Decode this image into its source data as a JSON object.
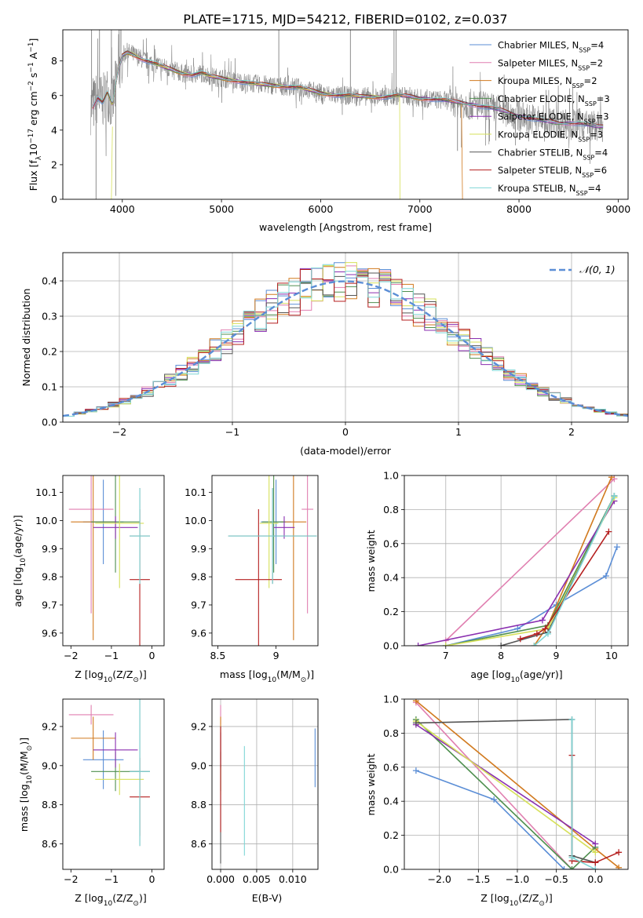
{
  "figure_title": "PLATE=1715, MJD=54212, FIBERID=0102, z=0.037",
  "models": [
    {
      "name": "Chabrier MILES",
      "nssp": "4",
      "color": "#5b8ed6"
    },
    {
      "name": "Salpeter MILES",
      "nssp": "2",
      "color": "#e07fb0"
    },
    {
      "name": "Kroupa MILES",
      "nssp": "2",
      "color": "#d17a1f"
    },
    {
      "name": "Chabrier ELODIE",
      "nssp": "3",
      "color": "#4f8f4f"
    },
    {
      "name": "Salpeter ELODIE",
      "nssp": "3",
      "color": "#8a2fb0"
    },
    {
      "name": "Kroupa ELODIE",
      "nssp": "3",
      "color": "#d6e05a"
    },
    {
      "name": "Chabrier STELIB",
      "nssp": "4",
      "color": "#555555"
    },
    {
      "name": "Salpeter STELIB",
      "nssp": "6",
      "color": "#b51f1f"
    },
    {
      "name": "Kroupa STELIB",
      "nssp": "4",
      "color": "#7fd6d6"
    }
  ],
  "chart_data": [
    {
      "id": "spectrum",
      "type": "line",
      "xlabel": "wavelength [Angstrom, rest frame]",
      "ylabel_parts": [
        "Flux [f",
        "λ",
        "10",
        "−17",
        " erg cm",
        "−2",
        " s",
        "−1",
        " A",
        "−1",
        "]"
      ],
      "xlim": [
        3400,
        9100
      ],
      "ylim": [
        0,
        9.8
      ],
      "xticks": [
        4000,
        5000,
        6000,
        7000,
        8000,
        9000
      ],
      "yticks": [
        0,
        2,
        4,
        6,
        8
      ],
      "legend_position": "top-right",
      "legend_sub": "SSP",
      "data_color": "#808080",
      "model_x": [
        3700,
        3750,
        3800,
        3850,
        3900,
        3950,
        4000,
        4050,
        4100,
        4200,
        4300,
        4400,
        4500,
        4600,
        4700,
        4800,
        4900,
        5000,
        5100,
        5200,
        5300,
        5400,
        5500,
        5600,
        5700,
        5800,
        5900,
        6000,
        6100,
        6200,
        6300,
        6400,
        6500,
        6600,
        6700,
        6800,
        6900,
        7000,
        7100,
        7200,
        7300,
        7400,
        7500,
        7600,
        7700,
        7800,
        7900,
        8000,
        8100,
        8200,
        8300,
        8400,
        8500,
        8600,
        8700,
        8800,
        8850
      ],
      "model_y": [
        5.3,
        5.9,
        5.6,
        6.2,
        5.4,
        7.2,
        8.3,
        8.5,
        8.4,
        8.1,
        7.9,
        7.7,
        7.5,
        7.3,
        7.2,
        7.3,
        7.1,
        7.0,
        6.9,
        6.8,
        6.7,
        6.65,
        6.6,
        6.55,
        6.5,
        6.45,
        6.3,
        6.15,
        6.05,
        6.0,
        6.0,
        5.95,
        5.95,
        5.9,
        5.95,
        6.0,
        5.95,
        5.85,
        5.8,
        5.75,
        5.7,
        5.6,
        5.5,
        5.4,
        5.3,
        5.2,
        5.0,
        4.8,
        4.7,
        4.6,
        4.5,
        4.4,
        4.4,
        4.4,
        4.3,
        4.2,
        4.2
      ]
    },
    {
      "id": "residuals",
      "type": "histogram",
      "xlabel": "(data-model)/error",
      "ylabel": "Normed distribution",
      "xlim": [
        -2.5,
        2.5
      ],
      "ylim": [
        0,
        0.48
      ],
      "xticks": [
        -2,
        -1,
        0,
        1,
        2
      ],
      "yticks": [
        0.0,
        0.1,
        0.2,
        0.3,
        0.4
      ],
      "bin_width": 0.1,
      "normal_label": "𝒩(0, 1)",
      "normal_color": "#5b8ed6",
      "legend_position": "top-right",
      "grid": true
    },
    {
      "id": "age-vs-Z",
      "type": "errorbar",
      "xlabel_parts": [
        "Z [log",
        "10",
        "(Z/Z",
        "⊙",
        ")]"
      ],
      "ylabel_parts": [
        "age  [log",
        "10",
        "(age/yr)]"
      ],
      "xlim": [
        -2.2,
        0.3
      ],
      "ylim": [
        9.555,
        10.16
      ],
      "xticks": [
        -2,
        -1,
        0
      ],
      "yticks": [
        9.6,
        9.7,
        9.8,
        9.9,
        10.0,
        10.1
      ],
      "points": [
        {
          "model": 0,
          "x": -1.2,
          "xerr": 0.5,
          "y": 9.995,
          "yerr": 0.15
        },
        {
          "model": 1,
          "x": -1.5,
          "xerr": 0.55,
          "y": 10.04,
          "yerr": 0.37
        },
        {
          "model": 2,
          "x": -1.45,
          "xerr": 0.55,
          "y": 9.995,
          "yerr": 0.42
        },
        {
          "model": 3,
          "x": -0.9,
          "xerr": 0.6,
          "y": 9.995,
          "yerr": 0.18
        },
        {
          "model": 4,
          "x": -0.9,
          "xerr": 0.55,
          "y": 9.975,
          "yerr": 0.04
        },
        {
          "model": 5,
          "x": -0.8,
          "xerr": 0.6,
          "y": 9.99,
          "yerr": 0.23
        },
        {
          "model": 6,
          "x": -0.3,
          "xerr": 0.25,
          "y": 9.945,
          "yerr": 0.17
        },
        {
          "model": 7,
          "x": -0.3,
          "xerr": 0.25,
          "y": 9.79,
          "yerr": 0.25
        },
        {
          "model": 8,
          "x": -0.3,
          "xerr": 0.25,
          "y": 9.945,
          "yerr": 0.17
        }
      ]
    },
    {
      "id": "age-vs-mass",
      "type": "errorbar",
      "xlabel_parts": [
        "mass [log",
        "10",
        "(M/M",
        "⊙",
        ")]"
      ],
      "xlim": [
        8.45,
        9.36
      ],
      "ylim": [
        9.555,
        10.16
      ],
      "xticks": [
        8.5,
        9.0
      ],
      "yticks": [
        9.6,
        9.7,
        9.8,
        9.9,
        10.0,
        10.1
      ],
      "points": [
        {
          "model": 0,
          "x": 9.0,
          "xerr": 0.13,
          "y": 9.995,
          "yerr": 0.15
        },
        {
          "model": 1,
          "x": 9.27,
          "xerr": 0.05,
          "y": 10.04,
          "yerr": 0.37
        },
        {
          "model": 2,
          "x": 9.15,
          "xerr": 0.11,
          "y": 9.995,
          "yerr": 0.42
        },
        {
          "model": 3,
          "x": 8.98,
          "xerr": 0.1,
          "y": 9.995,
          "yerr": 0.18
        },
        {
          "model": 4,
          "x": 9.07,
          "xerr": 0.09,
          "y": 9.975,
          "yerr": 0.04
        },
        {
          "model": 5,
          "x": 8.94,
          "xerr": 0.08,
          "y": 9.99,
          "yerr": 0.23
        },
        {
          "model": 6,
          "x": 8.97,
          "xerr": 0.38,
          "y": 9.945,
          "yerr": 0.17
        },
        {
          "model": 7,
          "x": 8.85,
          "xerr": 0.2,
          "y": 9.79,
          "yerr": 0.25
        },
        {
          "model": 8,
          "x": 8.97,
          "xerr": 0.38,
          "y": 9.945,
          "yerr": 0.17
        }
      ]
    },
    {
      "id": "weight-vs-age",
      "type": "line",
      "xlabel_parts": [
        "age  [log",
        "10",
        "(age/yr)]"
      ],
      "ylabel": "mass weight",
      "xlim": [
        6.25,
        10.3
      ],
      "ylim": [
        0,
        1
      ],
      "xticks": [
        7,
        8,
        9,
        10
      ],
      "yticks": [
        0.0,
        0.2,
        0.4,
        0.6,
        0.8,
        1.0
      ],
      "grid": true,
      "series": [
        {
          "model": 0,
          "x": [
            7.0,
            8.3,
            9.0,
            9.9,
            10.1
          ],
          "y": [
            0.0,
            0.1,
            0.24,
            0.41,
            0.58
          ]
        },
        {
          "model": 1,
          "x": [
            7.0,
            10.05
          ],
          "y": [
            0.03,
            0.98
          ]
        },
        {
          "model": 2,
          "x": [
            8.6,
            8.85,
            10.0
          ],
          "y": [
            0.0,
            0.12,
            0.99
          ]
        },
        {
          "model": 3,
          "x": [
            7.0,
            8.85,
            10.05
          ],
          "y": [
            0.0,
            0.12,
            0.88
          ]
        },
        {
          "model": 4,
          "x": [
            6.5,
            8.75,
            10.05
          ],
          "y": [
            0.0,
            0.15,
            0.85
          ]
        },
        {
          "model": 5,
          "x": [
            7.0,
            8.85,
            10.05
          ],
          "y": [
            0.0,
            0.1,
            0.87
          ]
        },
        {
          "model": 6,
          "x": [
            8.0,
            8.85,
            10.05
          ],
          "y": [
            0.0,
            0.08,
            0.88
          ]
        },
        {
          "model": 7,
          "x": [
            8.35,
            8.65,
            8.8,
            9.95
          ],
          "y": [
            0.04,
            0.07,
            0.1,
            0.67
          ]
        },
        {
          "model": 8,
          "x": [
            8.6,
            8.85,
            10.05
          ],
          "y": [
            0.0,
            0.07,
            0.88
          ]
        }
      ]
    },
    {
      "id": "mass-vs-Z",
      "type": "errorbar",
      "xlabel_parts": [
        "Z [log",
        "10",
        "(Z/Z",
        "⊙",
        ")]"
      ],
      "ylabel_parts": [
        "mass [log",
        "10",
        "(M/M",
        "⊙",
        ")]"
      ],
      "xlim": [
        -2.2,
        0.3
      ],
      "ylim": [
        8.47,
        9.34
      ],
      "xticks": [
        -2,
        -1,
        0
      ],
      "yticks": [
        8.6,
        8.8,
        9.0,
        9.2
      ],
      "points": [
        {
          "model": 0,
          "x": -1.2,
          "xerr": 0.5,
          "y": 9.03,
          "yerr": 0.15
        },
        {
          "model": 1,
          "x": -1.5,
          "xerr": 0.55,
          "y": 9.26,
          "yerr": 0.05
        },
        {
          "model": 2,
          "x": -1.45,
          "xerr": 0.55,
          "y": 9.14,
          "yerr": 0.11
        },
        {
          "model": 3,
          "x": -0.9,
          "xerr": 0.6,
          "y": 8.97,
          "yerr": 0.1
        },
        {
          "model": 4,
          "x": -0.9,
          "xerr": 0.55,
          "y": 9.08,
          "yerr": 0.09
        },
        {
          "model": 5,
          "x": -0.8,
          "xerr": 0.6,
          "y": 8.93,
          "yerr": 0.08
        },
        {
          "model": 6,
          "x": -0.3,
          "xerr": 0.25,
          "y": 8.97,
          "yerr": 0.38
        },
        {
          "model": 7,
          "x": -0.3,
          "xerr": 0.25,
          "y": 8.84,
          "yerr": 0.2
        },
        {
          "model": 8,
          "x": -0.3,
          "xerr": 0.25,
          "y": 8.97,
          "yerr": 0.38
        }
      ]
    },
    {
      "id": "mass-vs-ebv",
      "type": "errorbar",
      "xlabel": "E(B-V)",
      "xlim": [
        -0.0012,
        0.0135
      ],
      "ylim": [
        8.47,
        9.34
      ],
      "xticks": [
        0.0,
        0.005,
        0.01
      ],
      "xticklabels": [
        "0.000",
        "0.005",
        "0.010"
      ],
      "yticks": [
        8.6,
        8.8,
        9.0,
        9.2
      ],
      "grid": true,
      "points": [
        {
          "model": 0,
          "x": 0.0131,
          "xerr": 0,
          "y": 9.04,
          "yerr": 0.15
        },
        {
          "model": 1,
          "x": 0.0,
          "xerr": 0,
          "y": 9.26,
          "yerr": 0.05
        },
        {
          "model": 2,
          "x": 0.0,
          "xerr": 0,
          "y": 9.14,
          "yerr": 0.11
        },
        {
          "model": 3,
          "x": 0.0,
          "xerr": 0,
          "y": 8.97,
          "yerr": 0.1
        },
        {
          "model": 4,
          "x": 0.0,
          "xerr": 0,
          "y": 9.08,
          "yerr": 0.09
        },
        {
          "model": 5,
          "x": 0.0,
          "xerr": 0,
          "y": 8.93,
          "yerr": 0.08
        },
        {
          "model": 6,
          "x": 0.0,
          "xerr": 0,
          "y": 8.85,
          "yerr": 0.35
        },
        {
          "model": 7,
          "x": 0.0,
          "xerr": 0,
          "y": 8.93,
          "yerr": 0.27
        },
        {
          "model": 8,
          "x": 0.0033,
          "xerr": 0,
          "y": 8.82,
          "yerr": 0.28
        }
      ]
    },
    {
      "id": "weight-vs-Z",
      "type": "line",
      "xlabel_parts": [
        "Z [log",
        "10",
        "(Z/Z",
        "⊙",
        ")]"
      ],
      "ylabel": "mass weight",
      "xlim": [
        -2.45,
        0.42
      ],
      "ylim": [
        0,
        1
      ],
      "xticks": [
        -2.0,
        -1.5,
        -1.0,
        -0.5,
        0.0
      ],
      "xticklabels": [
        "−2.0",
        "−1.5",
        "−1.0",
        "−0.5",
        "0.0"
      ],
      "yticks": [
        0.0,
        0.2,
        0.4,
        0.6,
        0.8,
        1.0
      ],
      "grid": true,
      "series": [
        {
          "model": 0,
          "x": [
            -2.3,
            -1.3,
            -0.4,
            -0.3,
            0.0
          ],
          "y": [
            0.58,
            0.41,
            0.0,
            0.0,
            0.0
          ]
        },
        {
          "model": 1,
          "x": [
            -2.3,
            -0.3,
            0.0
          ],
          "y": [
            0.98,
            0.0,
            0.0
          ]
        },
        {
          "model": 2,
          "x": [
            -2.3,
            0.0,
            0.3
          ],
          "y": [
            0.99,
            0.12,
            0.01
          ]
        },
        {
          "model": 3,
          "x": [
            -2.3,
            -0.3,
            0.0
          ],
          "y": [
            0.88,
            0.0,
            0.13
          ]
        },
        {
          "model": 4,
          "x": [
            -2.3,
            0.0
          ],
          "y": [
            0.85,
            0.15
          ]
        },
        {
          "model": 5,
          "x": [
            -2.3,
            0.0
          ],
          "y": [
            0.87,
            0.1
          ]
        },
        {
          "model": 6,
          "x": [
            -2.3,
            -0.3,
            -0.3,
            0.0
          ],
          "y": [
            0.86,
            0.88,
            0.08,
            0.04
          ]
        },
        {
          "model": 7,
          "x": [
            -0.3,
            -0.3,
            0.0,
            0.3
          ],
          "y": [
            0.67,
            0.05,
            0.04,
            0.1
          ]
        },
        {
          "model": 8,
          "x": [
            -0.3,
            -0.3,
            0.0
          ],
          "y": [
            0.88,
            0.07,
            0.0
          ]
        }
      ]
    }
  ]
}
